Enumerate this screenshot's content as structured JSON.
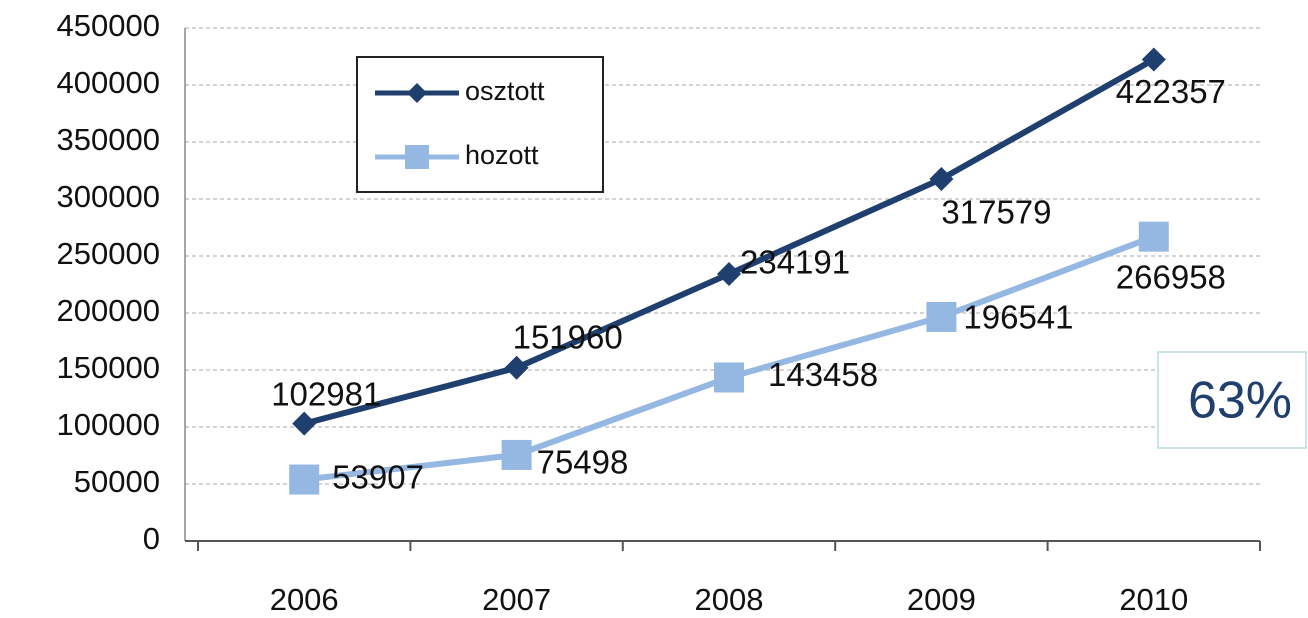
{
  "chart_data": {
    "type": "line",
    "categories": [
      "2006",
      "2007",
      "2008",
      "2009",
      "2010"
    ],
    "series": [
      {
        "name": "osztott",
        "color": "#1f3f6e",
        "marker": "diamond",
        "values": [
          102981,
          151960,
          234191,
          317579,
          422357
        ]
      },
      {
        "name": "hozott",
        "color": "#95b8e3",
        "marker": "square",
        "values": [
          53907,
          75498,
          143458,
          196541,
          266958
        ]
      }
    ],
    "ylim": [
      0,
      450000
    ],
    "yticks": [
      0,
      50000,
      100000,
      150000,
      200000,
      250000,
      300000,
      350000,
      400000,
      450000
    ],
    "grid": true,
    "legend": "upper left",
    "annotations": [
      {
        "text": "63%"
      }
    ]
  }
}
